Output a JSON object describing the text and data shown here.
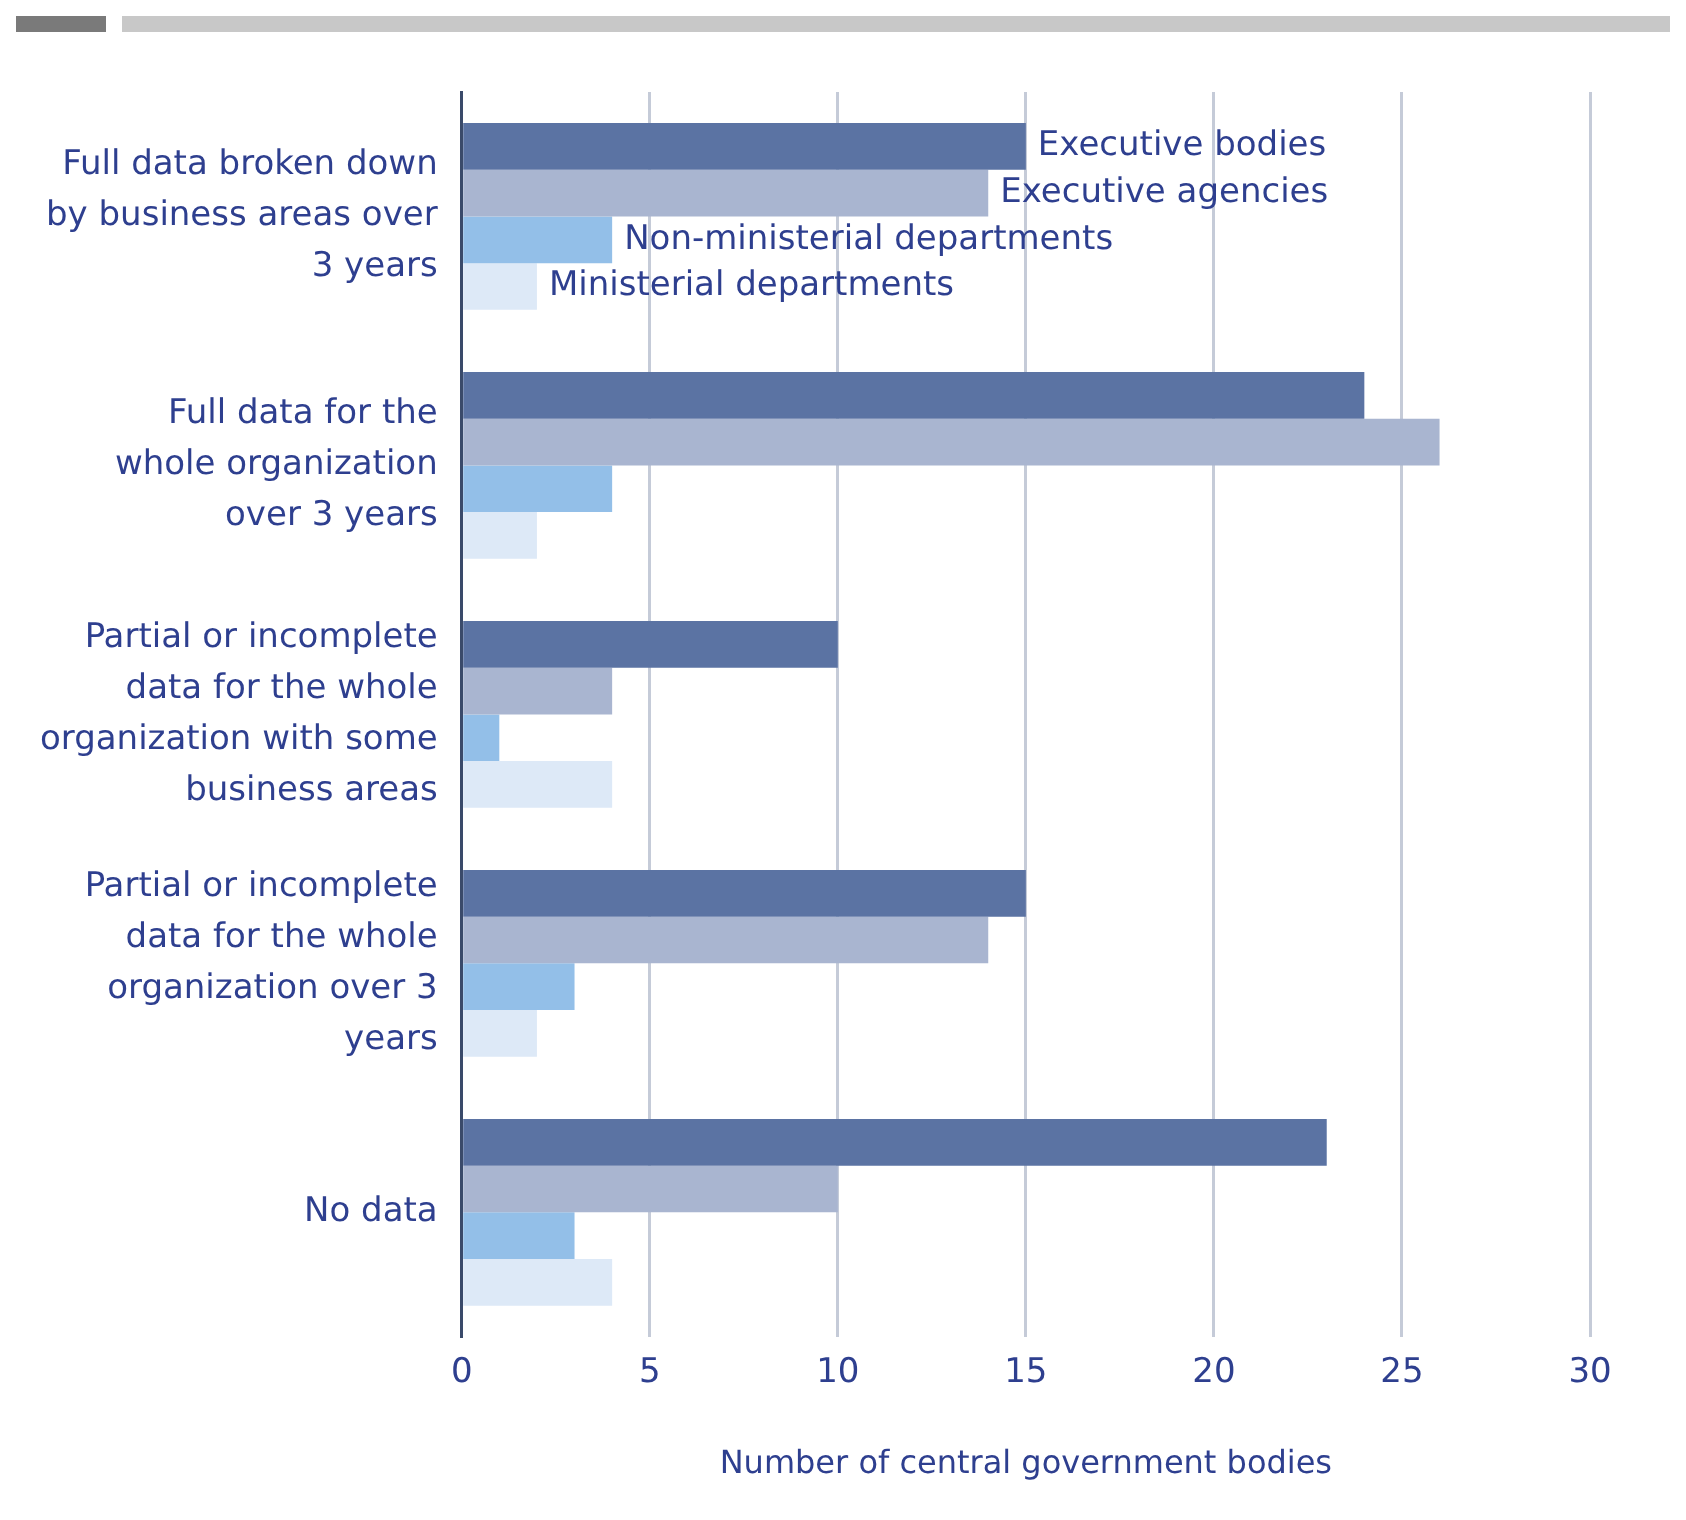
{
  "chart_data": {
    "type": "bar",
    "orientation": "horizontal",
    "xlabel": "Number of central government bodies",
    "categories": [
      "Full data broken down by business areas over 3 years",
      "Full data for the whole organization over 3 years",
      "Partial or incomplete data for the whole organization with some business areas",
      "Partial or incomplete data for the whole organization over 3 years",
      "No data"
    ],
    "series": [
      {
        "name": "Executive bodies",
        "color": "#5b73a3",
        "values": [
          15,
          24,
          10,
          15,
          23
        ]
      },
      {
        "name": "Executive agencies",
        "color": "#a9b5d0",
        "values": [
          14,
          26,
          4,
          14,
          10
        ]
      },
      {
        "name": "Non-ministerial departments",
        "color": "#93bfe8",
        "values": [
          4,
          4,
          1,
          3,
          3
        ]
      },
      {
        "name": "Ministerial departments",
        "color": "#dde9f7",
        "values": [
          2,
          2,
          4,
          2,
          4
        ]
      }
    ],
    "xlim": [
      0,
      30
    ],
    "xticks": [
      0,
      5,
      10,
      15,
      20,
      25,
      30
    ],
    "grid": "x",
    "legend": false
  }
}
